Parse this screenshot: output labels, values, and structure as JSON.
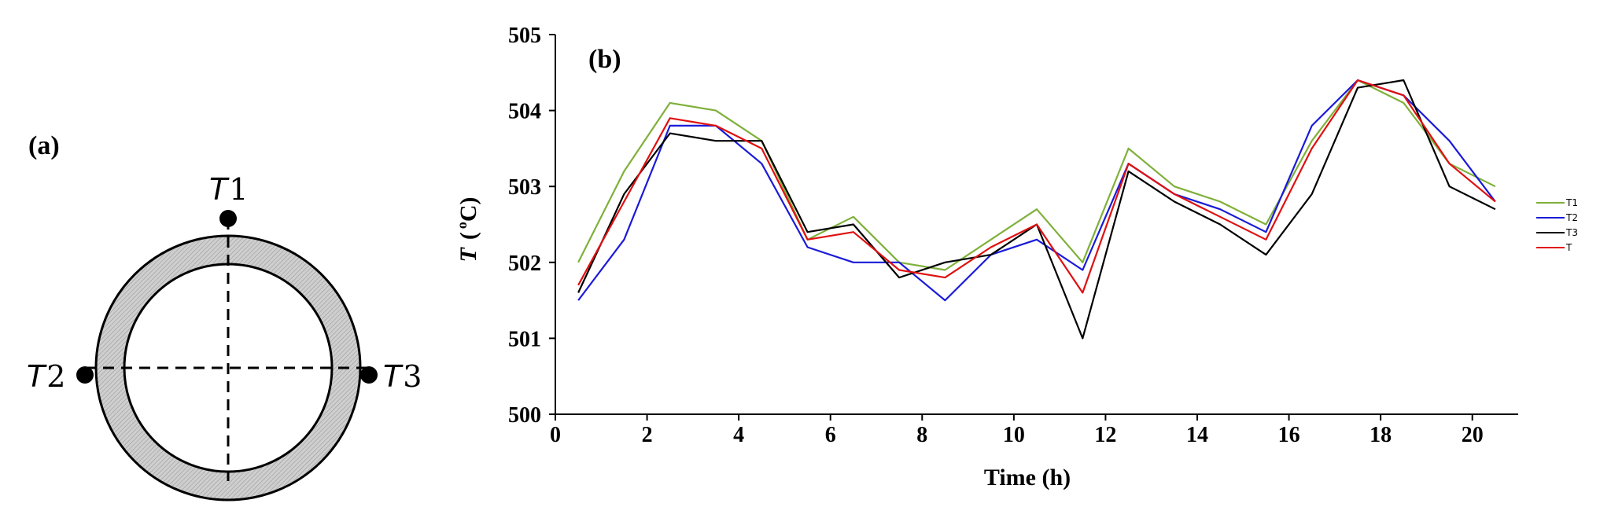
{
  "panel_a": {
    "label": "(a)",
    "sensors": [
      {
        "id": "t1",
        "letter": "T",
        "number": "1"
      },
      {
        "id": "t2",
        "letter": "T",
        "number": "2"
      },
      {
        "id": "t3",
        "letter": "T",
        "number": "3"
      }
    ]
  },
  "panel_b": {
    "label": "(b)"
  },
  "colors": {
    "T1": "#7fb03a",
    "T2": "#1a1ad8",
    "T3": "#000000",
    "T": "#e01010",
    "ring_fill": "#c8c8c8"
  },
  "chart_data": {
    "type": "line",
    "xlabel": "Time (h)",
    "ylabel_symbol": "T",
    "ylabel_unit_open": "(",
    "ylabel_unit_sup": "o",
    "ylabel_unit": "C)",
    "xlim": [
      0,
      21
    ],
    "ylim": [
      500,
      505
    ],
    "x_ticks": [
      0,
      2,
      4,
      6,
      8,
      10,
      12,
      14,
      16,
      18,
      20
    ],
    "y_ticks": [
      500,
      501,
      502,
      503,
      504,
      505
    ],
    "grid": false,
    "legend_position": "right",
    "x": [
      0.5,
      1.5,
      2.5,
      3.5,
      4.5,
      5.5,
      6.5,
      7.5,
      8.5,
      9.5,
      10.5,
      11.5,
      12.5,
      13.5,
      14.5,
      15.5,
      16.5,
      17.5,
      18.5,
      19.5,
      20.5
    ],
    "series": [
      {
        "name": "T1",
        "values": [
          502.0,
          503.2,
          504.1,
          504.0,
          503.6,
          502.3,
          502.6,
          502.0,
          501.9,
          502.3,
          502.7,
          502.0,
          503.5,
          503.0,
          502.8,
          502.5,
          503.6,
          504.4,
          504.1,
          503.3,
          503.0
        ]
      },
      {
        "name": "T2",
        "values": [
          501.5,
          502.3,
          503.8,
          503.8,
          503.3,
          502.2,
          502.0,
          502.0,
          501.5,
          502.1,
          502.3,
          501.9,
          503.3,
          502.9,
          502.7,
          502.4,
          503.8,
          504.4,
          504.2,
          503.6,
          502.8
        ]
      },
      {
        "name": "T3",
        "values": [
          501.6,
          502.9,
          503.7,
          503.6,
          503.6,
          502.4,
          502.5,
          501.8,
          502.0,
          502.1,
          502.5,
          501.0,
          503.2,
          502.8,
          502.5,
          502.1,
          502.9,
          504.3,
          504.4,
          503.0,
          502.7
        ]
      },
      {
        "name": "T",
        "values": [
          501.7,
          502.8,
          503.9,
          503.8,
          503.5,
          502.3,
          502.4,
          501.9,
          501.8,
          502.2,
          502.5,
          501.6,
          503.3,
          502.9,
          502.6,
          502.3,
          503.5,
          504.4,
          504.2,
          503.3,
          502.8
        ]
      }
    ]
  }
}
